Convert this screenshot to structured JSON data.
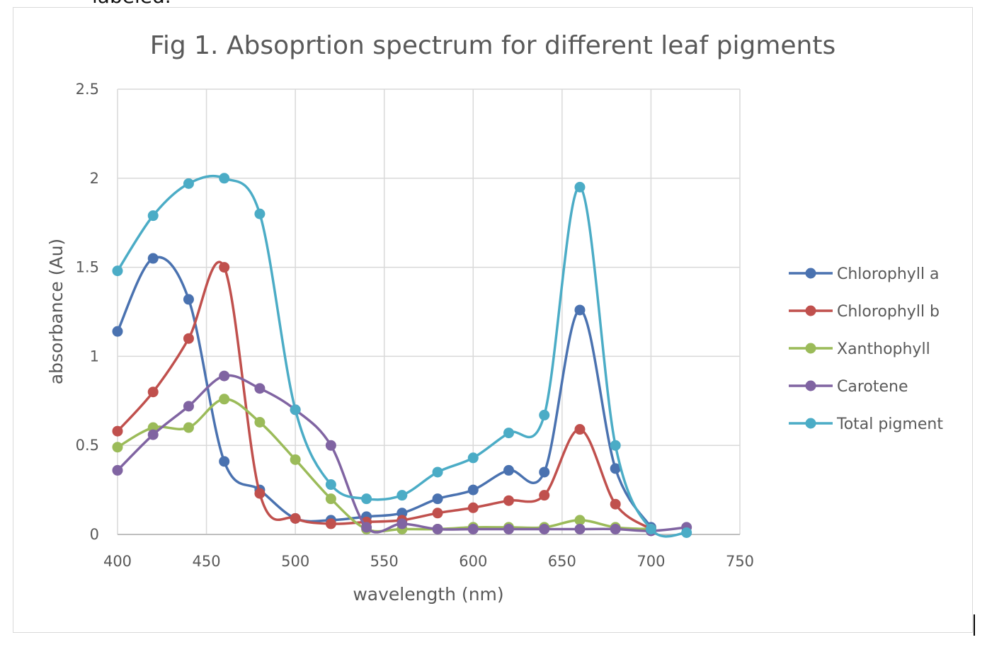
{
  "top_text": "labeled.",
  "chart_data": {
    "type": "line",
    "title": "Fig 1. Absoprtion spectrum for different leaf pigments",
    "xlabel": "wavelength (nm)",
    "ylabel": "absorbance (Au)",
    "xlim": [
      400,
      750
    ],
    "ylim": [
      0,
      2.5
    ],
    "xticks": [
      "400",
      "450",
      "500",
      "550",
      "600",
      "650",
      "700",
      "750"
    ],
    "yticks": [
      "0",
      "0.5",
      "1",
      "1.5",
      "2",
      "2.5"
    ],
    "grid": true,
    "smooth": true,
    "legend_position": "right",
    "x": [
      400,
      420,
      440,
      460,
      480,
      500,
      520,
      540,
      560,
      580,
      600,
      620,
      640,
      660,
      680,
      700,
      720
    ],
    "series": [
      {
        "name": "Chlorophyll a",
        "color": "#4a72b0",
        "values": [
          1.14,
          1.55,
          1.32,
          0.41,
          0.25,
          0.09,
          0.08,
          0.1,
          0.12,
          0.2,
          0.25,
          0.36,
          0.35,
          1.26,
          0.37,
          0.04,
          null
        ]
      },
      {
        "name": "Chlorophyll b",
        "color": "#c0504d",
        "values": [
          0.58,
          0.8,
          1.1,
          1.5,
          0.23,
          0.09,
          0.06,
          0.07,
          0.08,
          0.12,
          0.15,
          0.19,
          0.22,
          0.59,
          0.17,
          0.03,
          null
        ]
      },
      {
        "name": "Xanthophyll",
        "color": "#9bbb59",
        "values": [
          0.49,
          0.6,
          0.6,
          0.76,
          0.63,
          0.42,
          0.2,
          0.03,
          0.03,
          0.03,
          0.04,
          0.04,
          0.04,
          0.08,
          0.04,
          0.03,
          null
        ]
      },
      {
        "name": "Carotene",
        "color": "#8064a2",
        "values": [
          0.36,
          0.56,
          0.72,
          0.89,
          0.82,
          0.7,
          0.5,
          0.04,
          0.06,
          0.03,
          0.03,
          0.03,
          0.03,
          0.03,
          0.03,
          0.02,
          0.04
        ]
      },
      {
        "name": "Total pigment",
        "color": "#4bacc6",
        "values": [
          1.48,
          1.79,
          1.97,
          2.0,
          1.8,
          0.7,
          0.28,
          0.2,
          0.22,
          0.35,
          0.43,
          0.57,
          0.67,
          1.95,
          0.5,
          0.03,
          0.01
        ]
      }
    ]
  }
}
